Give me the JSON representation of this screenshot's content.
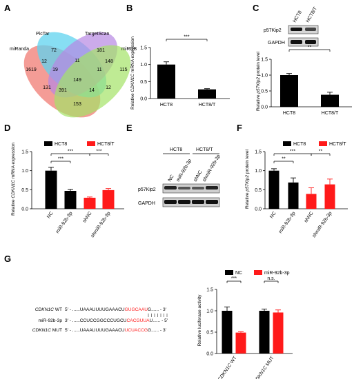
{
  "panels": {
    "A": "A",
    "B": "B",
    "C": "C",
    "D": "D",
    "E": "E",
    "F": "F",
    "G": "G"
  },
  "venn": {
    "sets": [
      {
        "name": "miRanda",
        "color": "#f28b84"
      },
      {
        "name": "PicTar",
        "color": "#5fd3ef"
      },
      {
        "name": "TargetScan",
        "color": "#b787e3"
      },
      {
        "name": "miRDB",
        "color": "#a4e366"
      }
    ],
    "counts": {
      "only_miRanda": "1619",
      "only_PicTar": "72",
      "only_TargetScan": "181",
      "only_miRDB": "115",
      "miRanda_PicTar": "12",
      "PicTar_TargetScan": "11",
      "TargetScan_miRDB": "148",
      "miRanda_miRDB": "153",
      "miRanda_TargetScan": "131",
      "PicTar_miRDB": "12",
      "mPT": "19",
      "PTD": "11",
      "mTD": "14",
      "mPD": "391",
      "all": "149"
    }
  },
  "chart_data": [
    {
      "id": "B",
      "type": "bar",
      "categories": [
        "HCT8",
        "HCT8/T"
      ],
      "values": [
        1.0,
        0.27
      ],
      "errors": [
        0.08,
        0.02
      ],
      "ylabel_italic": "CDKN1C",
      "ylabel_pre": "Relative ",
      "ylabel_post": " mRNA expression",
      "ylim": [
        0,
        1.5
      ],
      "yticks": [
        "0.0",
        "0.5",
        "1.0",
        "1.5"
      ],
      "significance": [
        {
          "from": 0,
          "to": 1,
          "label": "***"
        }
      ]
    },
    {
      "id": "C",
      "type": "bar",
      "categories": [
        "HCT8",
        "HCT8/T"
      ],
      "values": [
        1.0,
        0.38
      ],
      "errors": [
        0.05,
        0.08
      ],
      "ylabel_pre": "Relative ",
      "ylabel_italic": "p57Kip2",
      "ylabel_post": " protein level",
      "ylim": [
        0,
        1.5
      ],
      "yticks": [
        "0.0",
        "0.5",
        "1.0",
        "1.5"
      ],
      "significance": [
        {
          "from": 0,
          "to": 1,
          "label": "**"
        }
      ],
      "blot": {
        "lanes": [
          "HCT8",
          "HCT8/T"
        ],
        "bands": [
          "p57Kip2",
          "GAPDH"
        ]
      }
    },
    {
      "id": "D",
      "type": "bar",
      "categories": [
        "NC",
        "miR-92b-3p",
        "shNC",
        "shmiR-92b-3p"
      ],
      "values": [
        1.0,
        0.47,
        0.29,
        0.49
      ],
      "errors": [
        0.09,
        0.04,
        0.02,
        0.04
      ],
      "colors": [
        "#000000",
        "#000000",
        "#ff1a1a",
        "#ff1a1a"
      ],
      "legend": [
        {
          "name": "HCT8",
          "color": "#000000"
        },
        {
          "name": "HCT8/T",
          "color": "#ff1a1a"
        }
      ],
      "ylabel_pre": "Relative ",
      "ylabel_italic": "CDKN1C",
      "ylabel_post": " mRNA expression",
      "ylim": [
        0,
        1.5
      ],
      "yticks": [
        "0.0",
        "0.5",
        "1.0",
        "1.5"
      ],
      "significance": [
        {
          "from": 0,
          "to": 1,
          "label": "***"
        },
        {
          "from": 0,
          "to": 2,
          "label": "***"
        },
        {
          "from": 2,
          "to": 3,
          "label": "***"
        }
      ]
    },
    {
      "id": "F",
      "type": "bar",
      "categories": [
        "NC",
        "miR-92b-3p",
        "shNC",
        "shmiR-92b-3p"
      ],
      "values": [
        1.0,
        0.69,
        0.39,
        0.64
      ],
      "errors": [
        0.05,
        0.12,
        0.16,
        0.14
      ],
      "colors": [
        "#000000",
        "#000000",
        "#ff1a1a",
        "#ff1a1a"
      ],
      "legend": [
        {
          "name": "HCT8",
          "color": "#000000"
        },
        {
          "name": "HCT8/T",
          "color": "#ff1a1a"
        }
      ],
      "ylabel_pre": "Relative ",
      "ylabel_italic": "p57Kip2",
      "ylabel_post": " protein level",
      "ylim": [
        0,
        1.5
      ],
      "yticks": [
        "0.0",
        "0.5",
        "1.0",
        "1.5"
      ],
      "significance": [
        {
          "from": 0,
          "to": 1,
          "label": "**"
        },
        {
          "from": 0,
          "to": 2,
          "label": "***"
        },
        {
          "from": 2,
          "to": 3,
          "label": "**"
        }
      ]
    },
    {
      "id": "G",
      "type": "bar",
      "categories": [
        "CDKN1C WT",
        "CDKN1C MUT"
      ],
      "series": [
        {
          "name": "NC",
          "color": "#000000",
          "values": [
            1.0,
            1.0
          ],
          "errors": [
            0.09,
            0.04
          ]
        },
        {
          "name": "miR-92b-3p",
          "color": "#ff1a1a",
          "values": [
            0.49,
            0.96
          ],
          "errors": [
            0.02,
            0.06
          ]
        }
      ],
      "ylabel": "Relative luciferase activity",
      "ylim": [
        0,
        1.5
      ],
      "yticks": [
        "0.0",
        "0.5",
        "1.0",
        "1.5"
      ],
      "significance": [
        {
          "group": 0,
          "label": "***"
        },
        {
          "group": 1,
          "label": "n.s."
        }
      ]
    }
  ],
  "blot_E": {
    "groups": [
      "HCT8",
      "HCT8/T"
    ],
    "lanes": [
      "NC",
      "miR-92b-3p",
      "shNC",
      "shmiR-92b-3p"
    ],
    "bands": [
      "p57Kip2",
      "GAPDH"
    ]
  },
  "sequences": [
    {
      "name": "CDKN1C",
      "suffix": " WT",
      "italic": true,
      "prefix": "5' - ......UAAAUUUUGAAACU",
      "highlight": "GUGCAAU",
      "rest": "G...... - 3'"
    },
    {
      "name": "miR-92b-3p",
      "suffix": "",
      "italic": false,
      "prefix": "3' - ......CCUCCGGCCCUGCU",
      "highlight": "CACGUUA",
      "rest": "U...... - 5'"
    },
    {
      "name": "CDKN1C",
      "suffix": " MUT",
      "italic": true,
      "prefix": "5' - ......UAAAUUUUGAAACU",
      "highlight": "UCUACCG",
      "rest": "G...... - 3'"
    }
  ]
}
